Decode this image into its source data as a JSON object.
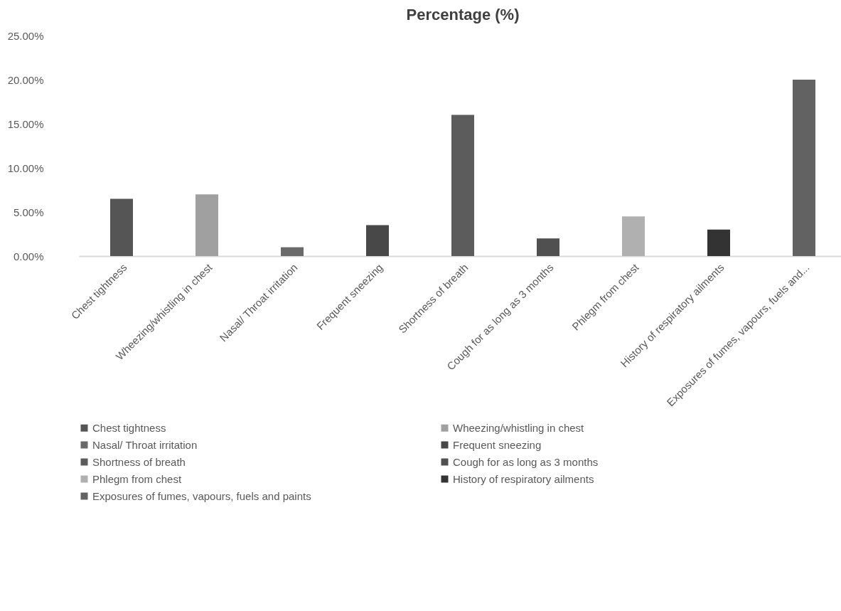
{
  "chart_data": {
    "type": "bar",
    "title": "Percentage (%)",
    "categories": [
      "Chest tightness",
      "Wheezing/whistling in chest",
      "Nasal/ Throat irritation",
      "Frequent sneezing",
      "Shortness of breath",
      "Cough for as long as 3 months",
      "Phlegm from chest",
      "History of respiratory ailments",
      "Exposures of fumes, vapours, fuels and..."
    ],
    "series": [
      {
        "name": "Chest tightness",
        "color": "#555555",
        "values": [
          6.5,
          null,
          null,
          null,
          null,
          null,
          null,
          null,
          null
        ]
      },
      {
        "name": "Wheezing/whistling in chest",
        "color": "#a0a0a0",
        "values": [
          null,
          7.0,
          null,
          null,
          null,
          null,
          null,
          null,
          null
        ]
      },
      {
        "name": "Nasal/ Throat irritation",
        "color": "#6a6a6a",
        "values": [
          null,
          null,
          1.0,
          null,
          null,
          null,
          null,
          null,
          null
        ]
      },
      {
        "name": "Frequent sneezing",
        "color": "#484848",
        "values": [
          null,
          null,
          null,
          3.5,
          null,
          null,
          null,
          null,
          null
        ]
      },
      {
        "name": "Shortness of breath",
        "color": "#5c5c5c",
        "values": [
          null,
          null,
          null,
          null,
          16.0,
          null,
          null,
          null,
          null
        ]
      },
      {
        "name": "Cough for as long as 3 months",
        "color": "#505050",
        "values": [
          null,
          null,
          null,
          null,
          null,
          2.0,
          null,
          null,
          null
        ]
      },
      {
        "name": "Phlegm from chest",
        "color": "#b0b0b0",
        "values": [
          null,
          null,
          null,
          null,
          null,
          null,
          4.5,
          null,
          null
        ]
      },
      {
        "name": "History of respiratory ailments",
        "color": "#333333",
        "values": [
          null,
          null,
          null,
          null,
          null,
          null,
          null,
          3.0,
          null
        ]
      },
      {
        "name": "Exposures of fumes, vapours, fuels and paints",
        "color": "#626262",
        "values": [
          null,
          null,
          null,
          null,
          null,
          null,
          null,
          null,
          20.0
        ]
      }
    ],
    "ylim": [
      0,
      25
    ],
    "yticks": [
      {
        "value": 0,
        "label": "0.00%"
      },
      {
        "value": 5,
        "label": "5.00%"
      },
      {
        "value": 10,
        "label": "10.00%"
      },
      {
        "value": 15,
        "label": "15.00%"
      },
      {
        "value": 20,
        "label": "20.00%"
      },
      {
        "value": 25,
        "label": "25.00%"
      }
    ],
    "grid": false,
    "legend": "bottom"
  }
}
